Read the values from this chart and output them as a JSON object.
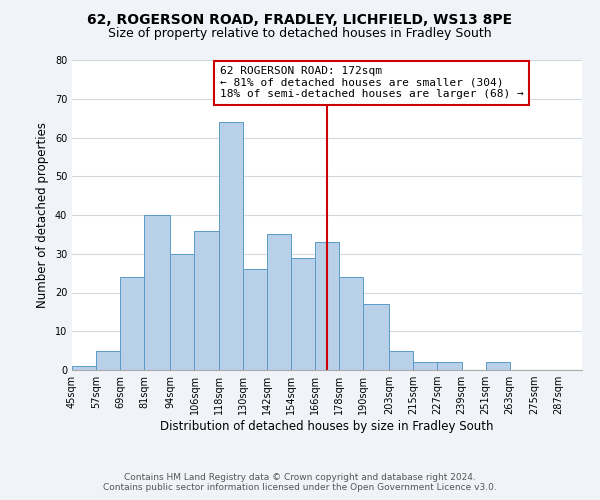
{
  "title": "62, ROGERSON ROAD, FRADLEY, LICHFIELD, WS13 8PE",
  "subtitle": "Size of property relative to detached houses in Fradley South",
  "xlabel": "Distribution of detached houses by size in Fradley South",
  "ylabel": "Number of detached properties",
  "footer_line1": "Contains HM Land Registry data © Crown copyright and database right 2024.",
  "footer_line2": "Contains public sector information licensed under the Open Government Licence v3.0.",
  "bin_labels": [
    "45sqm",
    "57sqm",
    "69sqm",
    "81sqm",
    "94sqm",
    "106sqm",
    "118sqm",
    "130sqm",
    "142sqm",
    "154sqm",
    "166sqm",
    "178sqm",
    "190sqm",
    "203sqm",
    "215sqm",
    "227sqm",
    "239sqm",
    "251sqm",
    "263sqm",
    "275sqm",
    "287sqm"
  ],
  "bin_edges": [
    45,
    57,
    69,
    81,
    94,
    106,
    118,
    130,
    142,
    154,
    166,
    178,
    190,
    203,
    215,
    227,
    239,
    251,
    263,
    275,
    287
  ],
  "bar_heights": [
    1,
    5,
    24,
    40,
    30,
    36,
    64,
    26,
    35,
    29,
    33,
    24,
    17,
    5,
    2,
    2,
    0,
    2,
    0,
    0
  ],
  "bar_color": "#b8d0e8",
  "bar_edge_color": "#5a9ac8",
  "vline_x": 172,
  "vline_color": "#cc0000",
  "ylim": [
    0,
    80
  ],
  "yticks": [
    0,
    10,
    20,
    30,
    40,
    50,
    60,
    70,
    80
  ],
  "annotation_title": "62 ROGERSON ROAD: 172sqm",
  "annotation_line1": "← 81% of detached houses are smaller (304)",
  "annotation_line2": "18% of semi-detached houses are larger (68) →",
  "background_color": "#f0f4f8",
  "plot_bg_color": "#ffffff",
  "grid_color": "#d0d8e0",
  "title_fontsize": 10,
  "subtitle_fontsize": 9,
  "axis_label_fontsize": 8.5,
  "tick_fontsize": 7,
  "annotation_fontsize": 8,
  "footer_fontsize": 6.5
}
